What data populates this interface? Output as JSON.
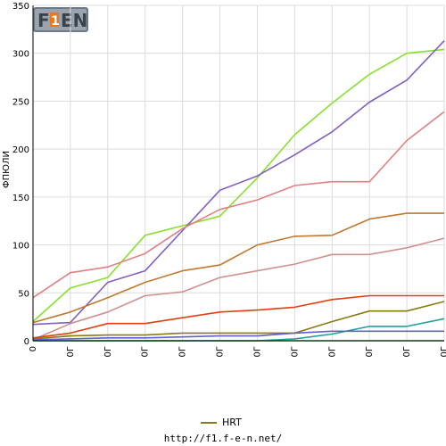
{
  "logo": {
    "text": "F1EN",
    "accent": "#e87722"
  },
  "legend": {
    "label": "HRT",
    "color": "#8a7a10"
  },
  "footer_url": "http://f1.f-e-n.net/",
  "colors": {
    "grid": "#dcdcdc",
    "axis": "#000000"
  },
  "chart_data": {
    "type": "line",
    "ylabel": "ФПЮЛИ",
    "ylim": [
      0,
      350
    ],
    "yticks": [
      0,
      50,
      100,
      150,
      200,
      250,
      300,
      350
    ],
    "x": [
      "0",
      "0Г",
      "0Г",
      "0Г",
      "0Г",
      "0Г",
      "0Г",
      "0Г",
      "0Г",
      "0Г",
      "0Г",
      "0Г"
    ],
    "series": [
      {
        "color": "#88e02c",
        "values": [
          20,
          55,
          66,
          110,
          120,
          130,
          170,
          215,
          248,
          278,
          300,
          304
        ]
      },
      {
        "color": "#8060c0",
        "values": [
          17,
          19,
          61,
          73,
          115,
          157,
          172,
          194,
          218,
          249,
          272,
          313
        ]
      },
      {
        "color": "#e08080",
        "values": [
          45,
          71,
          77,
          91,
          117,
          137,
          147,
          162,
          166,
          166,
          209,
          239
        ]
      },
      {
        "color": "#c07830",
        "values": [
          19,
          30,
          45,
          61,
          73,
          79,
          100,
          109,
          110,
          127,
          133,
          133
        ]
      },
      {
        "color": "#d09090",
        "values": [
          1,
          18,
          30,
          47,
          51,
          66,
          73,
          80,
          90,
          90,
          97,
          107
        ]
      },
      {
        "color": "#e04010",
        "values": [
          3,
          8,
          18,
          18,
          24,
          30,
          32,
          35,
          43,
          47,
          47,
          47
        ]
      },
      {
        "color": "#8a7a10",
        "values": [
          2,
          5,
          6,
          6,
          8,
          8,
          8,
          8,
          20,
          31,
          31,
          41
        ]
      },
      {
        "color": "#20a0a0",
        "values": [
          0,
          0,
          0,
          0,
          0,
          0,
          0,
          2,
          7,
          15,
          15,
          23
        ]
      },
      {
        "color": "#6060d0",
        "values": [
          1,
          2,
          3,
          3,
          4,
          5,
          5,
          8,
          10,
          10,
          10,
          10
        ]
      },
      {
        "color": "#40b040",
        "values": [
          0,
          0,
          0,
          0,
          0,
          0,
          0,
          0,
          0,
          0,
          0,
          0
        ]
      }
    ]
  }
}
